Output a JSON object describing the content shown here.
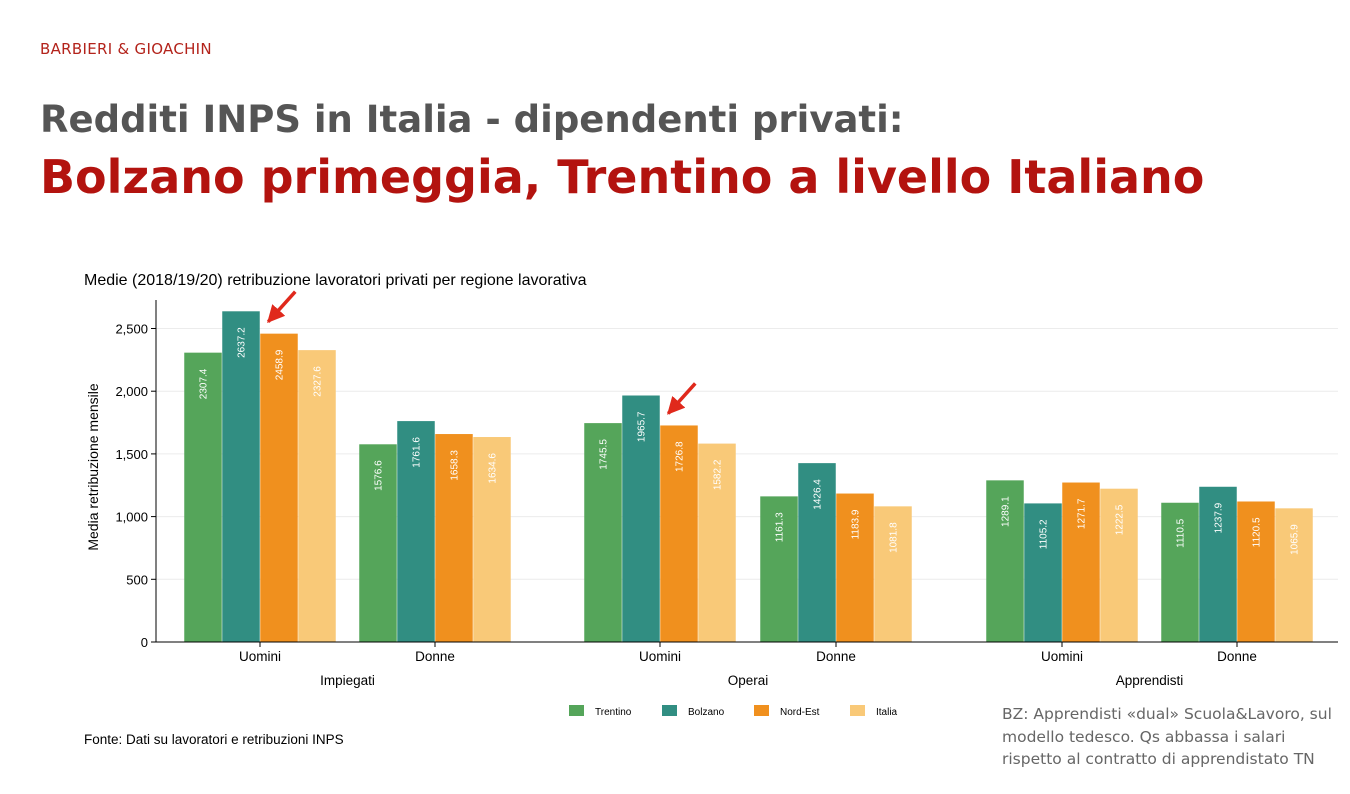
{
  "header": {
    "brand": "BARBIERI & GIOACHIN",
    "title_line1": "Redditi INPS in Italia - dipendenti privati:",
    "title_line2": "Bolzano primeggia, Trentino a livello Italiano"
  },
  "side_note": "BZ: Apprendisti «dual» Scuola&Lavoro, sul modello tedesco. Qs abbassa i salari rispetto al contratto di apprendistato TN",
  "chart_data": {
    "type": "bar",
    "title": "Medie (2018/19/20) retribuzione lavoratori privati per regione lavorativa",
    "ylabel": "Media retribuzione mensile",
    "ylim": [
      0,
      2750
    ],
    "yticks": [
      0,
      500,
      1000,
      1500,
      2000,
      2500
    ],
    "ytick_labels": [
      "0",
      "500",
      "1,000",
      "1,500",
      "2,000",
      "2,500"
    ],
    "grid": true,
    "legend_position": "bottom",
    "groups": [
      {
        "label": "Impiegati",
        "categories": [
          "Uomini",
          "Donne"
        ]
      },
      {
        "label": "Operai",
        "categories": [
          "Uomini",
          "Donne"
        ]
      },
      {
        "label": "Apprendisti",
        "categories": [
          "Uomini",
          "Donne"
        ]
      }
    ],
    "series": [
      {
        "name": "Trentino",
        "color": "#55a55a",
        "values": [
          2307.4,
          1576.6,
          1745.5,
          1161.3,
          1289.1,
          1110.5
        ],
        "labels": [
          "2307.4",
          "1576.6",
          "1745.5",
          "1161.3",
          "1289.1",
          "1110.5"
        ]
      },
      {
        "name": "Bolzano",
        "color": "#318e82",
        "values": [
          2637.2,
          1761.6,
          1965.7,
          1426.4,
          1105.2,
          1237.9
        ],
        "labels": [
          "2637.2",
          "1761.6",
          "1965.7",
          "1426.4",
          "1105.2",
          "1237.9"
        ]
      },
      {
        "name": "Nord-Est",
        "color": "#f0901e",
        "values": [
          2458.9,
          1658.3,
          1726.8,
          1183.9,
          1271.7,
          1120.5
        ],
        "labels": [
          "2458.9",
          "1658.3",
          "1726.8",
          "1183.9",
          "1271.7",
          "1120.5"
        ]
      },
      {
        "name": "Italia",
        "color": "#f9c978",
        "values": [
          2327.6,
          1634.6,
          1582.2,
          1081.8,
          1222.5,
          1065.9
        ],
        "labels": [
          "2327.6",
          "1634.6",
          "1582.2",
          "1081.8",
          "1222.5",
          "1065.9"
        ]
      }
    ],
    "source": "Fonte: Dati su lavoratori e retribuzioni INPS",
    "annotations": [
      {
        "type": "arrow",
        "color": "#e0291c",
        "points_to": {
          "series": "Nord-Est",
          "category_index": 0
        }
      },
      {
        "type": "arrow",
        "color": "#e0291c",
        "points_to": {
          "series": "Nord-Est",
          "category_index": 2
        }
      }
    ]
  }
}
